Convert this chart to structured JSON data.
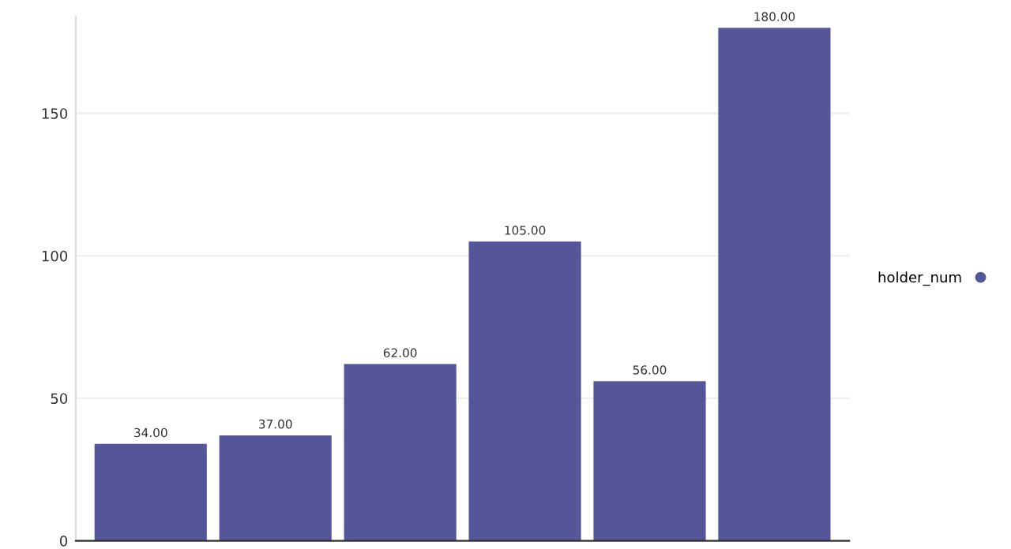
{
  "chart_data": {
    "type": "bar",
    "categories": [
      null,
      null,
      null,
      null,
      null,
      null
    ],
    "series": [
      {
        "name": "holder_num",
        "color": "#55559a",
        "values": [
          34,
          37,
          62,
          105,
          56,
          180
        ],
        "value_labels": [
          "34.00",
          "37.00",
          "62.00",
          "105.00",
          "56.00",
          "180.00"
        ]
      }
    ],
    "ylim": [
      0,
      184
    ],
    "yticks": [
      0,
      50,
      100,
      150
    ],
    "grid": "y",
    "legend": "right"
  }
}
